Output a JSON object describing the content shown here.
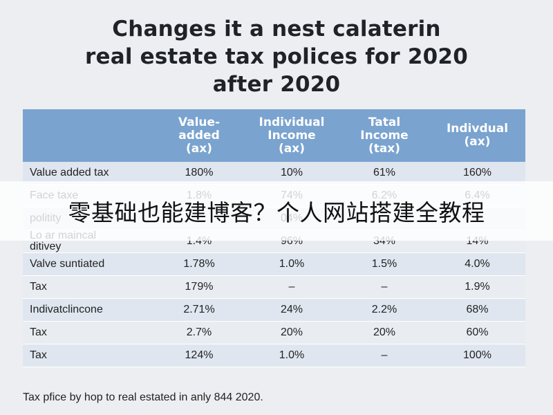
{
  "chart_data": {
    "type": "table",
    "title_lines": [
      "Changes it a nest calaterin",
      "real estate tax polices for 2020",
      "after 2020"
    ],
    "columns": [
      {
        "lines": [
          ""
        ]
      },
      {
        "lines": [
          "Value-",
          "added",
          "(ax)"
        ]
      },
      {
        "lines": [
          "Individual",
          "Income",
          "(ax)"
        ]
      },
      {
        "lines": [
          "Tatal",
          "Income",
          "(tax)"
        ]
      },
      {
        "lines": [
          "Indivdual",
          "(ax)"
        ]
      }
    ],
    "rows": [
      {
        "label_lines": [
          "Value added tax"
        ],
        "values": [
          "180%",
          "10%",
          "61%",
          "160%"
        ]
      },
      {
        "label_lines": [
          "Face taxe"
        ],
        "values": [
          "1.8%",
          "74%",
          "6.2%",
          "6.4%"
        ]
      },
      {
        "label_lines": [
          "",
          "politity"
        ],
        "values": [
          "",
          "04%",
          "",
          ""
        ]
      },
      {
        "label_lines": [
          "Lo ar maincal",
          "ditivey"
        ],
        "values": [
          "1.4%",
          "96%",
          "34%",
          "14%"
        ]
      },
      {
        "label_lines": [
          "Valve suntiated"
        ],
        "values": [
          "1.78%",
          "1.0%",
          "1.5%",
          "4.0%"
        ]
      },
      {
        "label_lines": [
          "Tax"
        ],
        "values": [
          "179%",
          "–",
          "–",
          "1.9%"
        ]
      },
      {
        "label_lines": [
          "Indivatclincone"
        ],
        "values": [
          "2.71%",
          "24%",
          "2.2%",
          "68%"
        ]
      },
      {
        "label_lines": [
          "Tax"
        ],
        "values": [
          "2.7%",
          "20%",
          "20%",
          "60%"
        ]
      },
      {
        "label_lines": [
          "Tax"
        ],
        "values": [
          "124%",
          "1.0%",
          "–",
          "100%"
        ]
      }
    ],
    "footnote": "Tax pfice by hop to real estated in anly 844 2020.",
    "colors": {
      "header_bg": "#7aa3cf",
      "header_text": "#ffffff",
      "row_odd": "#dfe6ef",
      "row_even": "#e9edf2",
      "page_bg": "#eceef1"
    }
  },
  "overlay_banner": {
    "text": "零基础也能建博客？个人网站搭建全教程"
  }
}
